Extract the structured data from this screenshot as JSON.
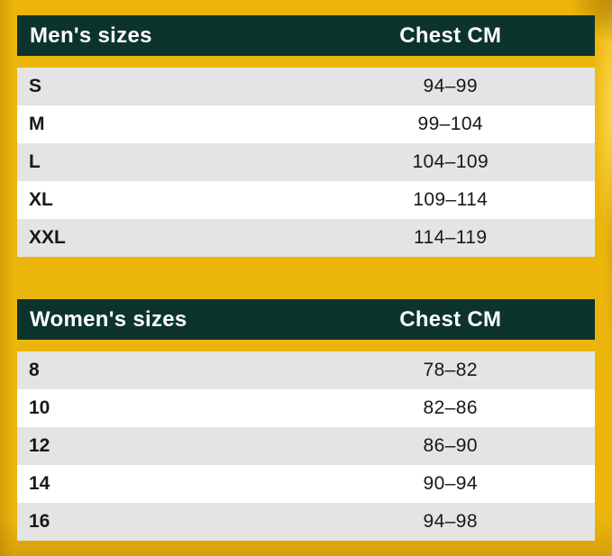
{
  "page": {
    "background_color": "#ECB50C",
    "header_bg_color": "#0C342C",
    "row_alt_color": "#E4E4E4",
    "row_color": "#FFFFFF",
    "header_text_color": "#FFFFFF",
    "body_text_color": "#181818"
  },
  "tables": [
    {
      "title": "Men's sizes",
      "measure_header": "Chest CM",
      "rows": [
        {
          "size": "S",
          "chest_cm": "94–99"
        },
        {
          "size": "M",
          "chest_cm": "99–104"
        },
        {
          "size": "L",
          "chest_cm": "104–109"
        },
        {
          "size": "XL",
          "chest_cm": "109–114"
        },
        {
          "size": "XXL",
          "chest_cm": "114–119"
        }
      ]
    },
    {
      "title": "Women's sizes",
      "measure_header": "Chest CM",
      "rows": [
        {
          "size": "8",
          "chest_cm": "78–82"
        },
        {
          "size": "10",
          "chest_cm": "82–86"
        },
        {
          "size": "12",
          "chest_cm": "86–90"
        },
        {
          "size": "14",
          "chest_cm": "90–94"
        },
        {
          "size": "16",
          "chest_cm": "94–98"
        }
      ]
    }
  ]
}
